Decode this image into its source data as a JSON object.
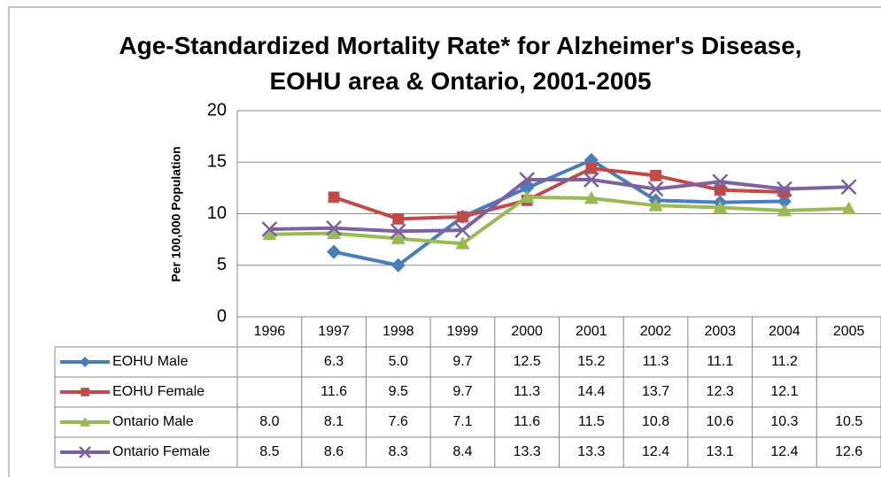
{
  "chart_data": {
    "type": "line",
    "title": "Age-Standardized Mortality Rate* for Alzheimer's Disease, EOHU area & Ontario, 2001-2005",
    "y_label": "Per 100,000 Population",
    "categories": [
      "1996",
      "1997",
      "1998",
      "1999",
      "2000",
      "2001",
      "2002",
      "2003",
      "2004",
      "2005"
    ],
    "ylim": [
      0,
      20
    ],
    "yticks": [
      0,
      5,
      10,
      15,
      20
    ],
    "grid": true,
    "data_table": true,
    "series": [
      {
        "name": "EOHU Male",
        "color": "#4a7ebb",
        "marker": "diamond",
        "values": [
          null,
          6.3,
          5.0,
          9.7,
          12.5,
          15.2,
          11.3,
          11.1,
          11.2,
          null
        ],
        "value_labels": [
          null,
          "6.3",
          "5.0",
          "9.7",
          "12.5",
          "15.2",
          "11.3",
          "11.1",
          "11.2",
          null
        ]
      },
      {
        "name": "EOHU Female",
        "color": "#be4b48",
        "marker": "square",
        "values": [
          null,
          11.6,
          9.5,
          9.7,
          11.3,
          14.4,
          13.7,
          12.3,
          12.1,
          null
        ],
        "value_labels": [
          null,
          "11.6",
          "9.5",
          "9.7",
          "11.3",
          "14.4",
          "13.7",
          "12.3",
          "12.1",
          null
        ]
      },
      {
        "name": "Ontario Male",
        "color": "#98b954",
        "marker": "triangle",
        "values": [
          8.0,
          8.1,
          7.6,
          7.1,
          11.6,
          11.5,
          10.8,
          10.6,
          10.3,
          10.5
        ],
        "value_labels": [
          "8.0",
          "8.1",
          "7.6",
          "7.1",
          "11.6",
          "11.5",
          "10.8",
          "10.6",
          "10.3",
          "10.5"
        ]
      },
      {
        "name": "Ontario Female",
        "color": "#7d60a0",
        "marker": "x",
        "values": [
          8.5,
          8.6,
          8.3,
          8.4,
          13.3,
          13.3,
          12.4,
          13.1,
          12.4,
          12.6
        ],
        "value_labels": [
          "8.5",
          "8.6",
          "8.3",
          "8.4",
          "13.3",
          "13.3",
          "12.4",
          "13.1",
          "12.4",
          "12.6"
        ]
      }
    ]
  }
}
